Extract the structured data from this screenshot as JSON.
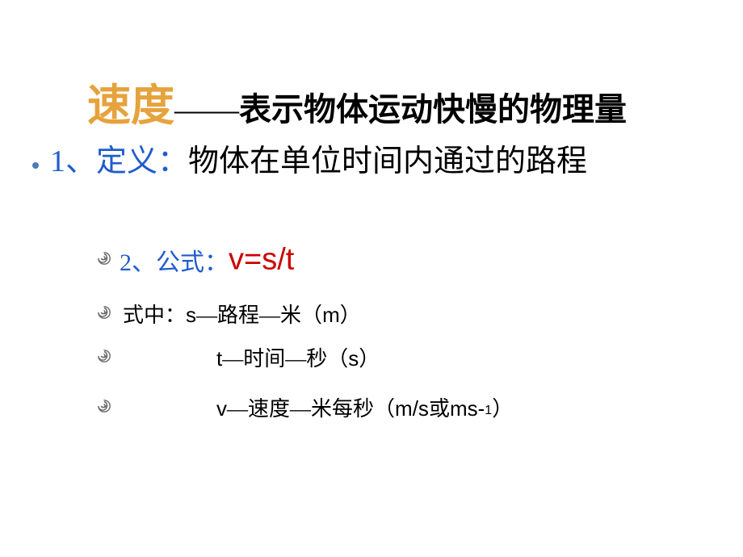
{
  "colors": {
    "title_main": "#e6a23c",
    "title_rest": "#000000",
    "bullet": "#4a7ab8",
    "def_label": "#205ccc",
    "def_text": "#000000",
    "formula_label": "#205ccc",
    "formula_eq": "#cc0000",
    "body_text": "#000000",
    "swirl_dark": "#6b6b6b",
    "swirl_light": "#c9c9c9",
    "background": "#ffffff"
  },
  "fonts": {
    "title_main_size": 54,
    "title_rest_size": 40,
    "def_size": 38,
    "formula_label_size": 30,
    "formula_eq_size": 38,
    "body_size": 26,
    "sup_size": 16
  },
  "title": {
    "main": "速度",
    "sep": "——",
    "rest": "表示物体运动快慢的物理量"
  },
  "definition": {
    "label": "1、定义：",
    "text": "物体在单位时间内通过的路程"
  },
  "formula": {
    "label": "2、公式：",
    "eq": "v=s/t"
  },
  "desc": {
    "prefix": "式中：",
    "s": {
      "var": "s",
      "sep1": "—",
      "name": "路程",
      "sep2": "—",
      "unit_cn": "米",
      "paren_open": "（",
      "unit_sym": "m",
      "paren_close": "）"
    },
    "t": {
      "var": "t",
      "sep1": "—",
      "name": "时间",
      "sep2": "—",
      "unit_cn": "秒",
      "paren_open": "（",
      "unit_sym": "s",
      "paren_close": "）"
    },
    "v": {
      "var": "v",
      "sep1": "—",
      "name": "速度",
      "sep2": "—",
      "unit_cn": "米每秒",
      "paren_open": "（",
      "unit_sym1": "m/s",
      "or": "或",
      "unit_sym2": "ms-",
      "sup": "1",
      "paren_close": "）"
    }
  }
}
